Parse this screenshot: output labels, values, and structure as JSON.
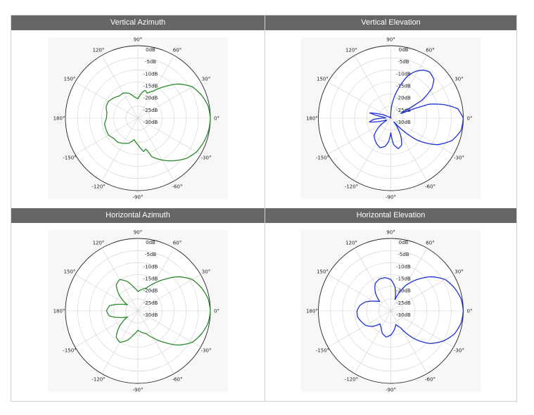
{
  "chart_data": [
    {
      "type": "polar",
      "title": "Vertical Azimuth",
      "color": "#2a8a2a",
      "r_ticks": [
        "0dB",
        "-5dB",
        "-10dB",
        "-15dB",
        "-20dB",
        "-25dB",
        "-30dB"
      ],
      "r_range_db": [
        -30,
        0
      ],
      "angle_ticks": [
        "0°",
        "30°",
        "60°",
        "90°",
        "120°",
        "150°",
        "180°",
        "-150°",
        "-120°",
        "-90°",
        "-60°",
        "-30°"
      ],
      "pattern": {
        "angles_deg": [
          0,
          10,
          20,
          30,
          40,
          50,
          60,
          70,
          75,
          80,
          90,
          100,
          110,
          120,
          130,
          140,
          150,
          160,
          170,
          180,
          190,
          200,
          210,
          220,
          230,
          240,
          250,
          260,
          270,
          280,
          285,
          290,
          300,
          310,
          320,
          330,
          340,
          350
        ],
        "gain_db": [
          0,
          -0.5,
          -2,
          -4,
          -8,
          -13,
          -17,
          -19,
          -18,
          -19,
          -22,
          -21,
          -19,
          -18,
          -18,
          -17,
          -16,
          -16,
          -17,
          -17,
          -16,
          -16,
          -16,
          -17,
          -17,
          -18,
          -19,
          -21,
          -19,
          -16,
          -17,
          -13,
          -10,
          -7,
          -4,
          -2,
          -1,
          -0.3
        ]
      }
    },
    {
      "type": "polar",
      "title": "Vertical Elevation",
      "color": "#1f2fd6",
      "r_ticks": [
        "0dB",
        "-5dB",
        "-10dB",
        "-15dB",
        "-20dB",
        "-25dB",
        "-30dB"
      ],
      "r_range_db": [
        -30,
        0
      ],
      "angle_ticks": [
        "0°",
        "30°",
        "60°",
        "90°",
        "120°",
        "150°",
        "180°",
        "-150°",
        "-120°",
        "-90°",
        "-60°",
        "-30°"
      ],
      "pattern": {
        "angles_deg": [
          0,
          8,
          14,
          20,
          25,
          30,
          36,
          42,
          50,
          56,
          62,
          68,
          74,
          82,
          92,
          110,
          130,
          150,
          160,
          166,
          172,
          178,
          184,
          190,
          196,
          202,
          208,
          216,
          226,
          240,
          250,
          258,
          264,
          270,
          276,
          284,
          292,
          300,
          310,
          320,
          330,
          340,
          350
        ],
        "gain_db": [
          0,
          -2,
          -7,
          -13,
          -28,
          -15,
          -9,
          -6,
          -5,
          -6,
          -8,
          -11,
          -16,
          -22,
          -29,
          -30,
          -30,
          -29,
          -25,
          -21,
          -27,
          -28,
          -23,
          -21,
          -25,
          -28,
          -28,
          -24,
          -20,
          -18,
          -17,
          -18,
          -20,
          -24,
          -19,
          -17,
          -18,
          -22,
          -28,
          -16,
          -8,
          -3,
          -0.5
        ]
      }
    },
    {
      "type": "polar",
      "title": "Horizontal Azimuth",
      "color": "#2a8a2a",
      "r_ticks": [
        "0dB",
        "-5dB",
        "-10dB",
        "-15dB",
        "-20dB",
        "-25dB",
        "-30dB"
      ],
      "r_range_db": [
        -30,
        0
      ],
      "angle_ticks": [
        "0°",
        "30°",
        "60°",
        "90°",
        "120°",
        "150°",
        "180°",
        "-150°",
        "-120°",
        "-90°",
        "-60°",
        "-30°"
      ],
      "pattern": {
        "angles_deg": [
          0,
          10,
          20,
          30,
          40,
          50,
          60,
          70,
          80,
          90,
          100,
          110,
          120,
          130,
          140,
          150,
          160,
          170,
          180,
          190,
          200,
          210,
          220,
          230,
          240,
          250,
          260,
          270,
          280,
          290,
          300,
          310,
          320,
          330,
          340,
          350
        ],
        "gain_db": [
          0,
          -0.5,
          -2,
          -4,
          -8,
          -13,
          -17,
          -20,
          -21,
          -22,
          -20,
          -17,
          -15,
          -16,
          -20,
          -25,
          -22,
          -18,
          -17,
          -18,
          -22,
          -25,
          -20,
          -16,
          -15,
          -17,
          -20,
          -22,
          -21,
          -20,
          -17,
          -13,
          -8,
          -4,
          -2,
          -0.5
        ]
      }
    },
    {
      "type": "polar",
      "title": "Horizontal Elevation",
      "color": "#1f2fd6",
      "r_ticks": [
        "0dB",
        "-5dB",
        "-10dB",
        "-15dB",
        "-20dB",
        "-25dB",
        "-30dB"
      ],
      "r_range_db": [
        -30,
        0
      ],
      "angle_ticks": [
        "0°",
        "30°",
        "60°",
        "90°",
        "120°",
        "150°",
        "180°",
        "-150°",
        "-120°",
        "-90°",
        "-60°",
        "-30°"
      ],
      "pattern": {
        "angles_deg": [
          0,
          10,
          20,
          30,
          40,
          50,
          60,
          70,
          80,
          90,
          100,
          110,
          120,
          130,
          140,
          150,
          160,
          170,
          180,
          190,
          200,
          210,
          220,
          230,
          240,
          250,
          260,
          270,
          280,
          290,
          300,
          310,
          320,
          330,
          340,
          350
        ],
        "gain_db": [
          0,
          -0.5,
          -2,
          -4,
          -8,
          -13,
          -18,
          -25,
          -20,
          -17,
          -16,
          -16,
          -17,
          -20,
          -24,
          -22,
          -19,
          -17,
          -16,
          -16,
          -17,
          -18,
          -20,
          -23,
          -22,
          -20,
          -19,
          -20,
          -22,
          -24,
          -22,
          -15,
          -9,
          -5,
          -2,
          -0.5
        ]
      }
    }
  ]
}
